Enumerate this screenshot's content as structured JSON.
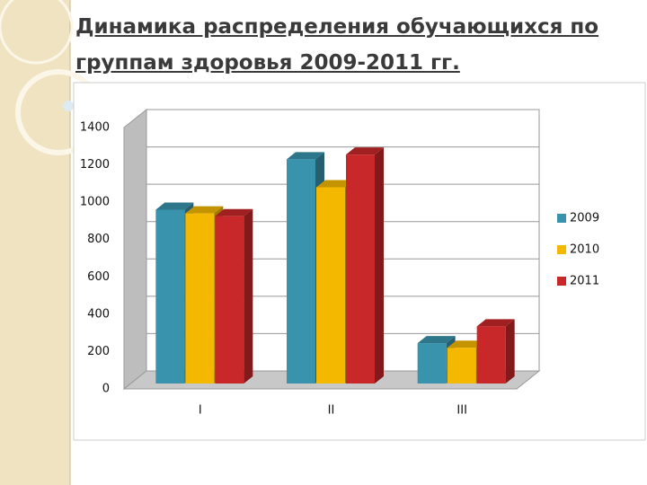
{
  "chart_data": {
    "type": "bar3d",
    "title": "Динамика распределения обучающихся по группам здоровья 2009-2011 гг.",
    "categories": [
      "I",
      "II",
      "III"
    ],
    "series": [
      {
        "name": "2009",
        "color": "#3a93ad",
        "values": [
          960,
          1230,
          245
        ]
      },
      {
        "name": "2010",
        "color": "#f5b800",
        "values": [
          940,
          1080,
          220
        ]
      },
      {
        "name": "2011",
        "color": "#c8282a",
        "values": [
          925,
          1255,
          335
        ]
      }
    ],
    "ylim": [
      0,
      1400
    ],
    "yticks": [
      0,
      200,
      400,
      600,
      800,
      1000,
      1200,
      1400
    ],
    "grid": true,
    "legend": "right"
  }
}
